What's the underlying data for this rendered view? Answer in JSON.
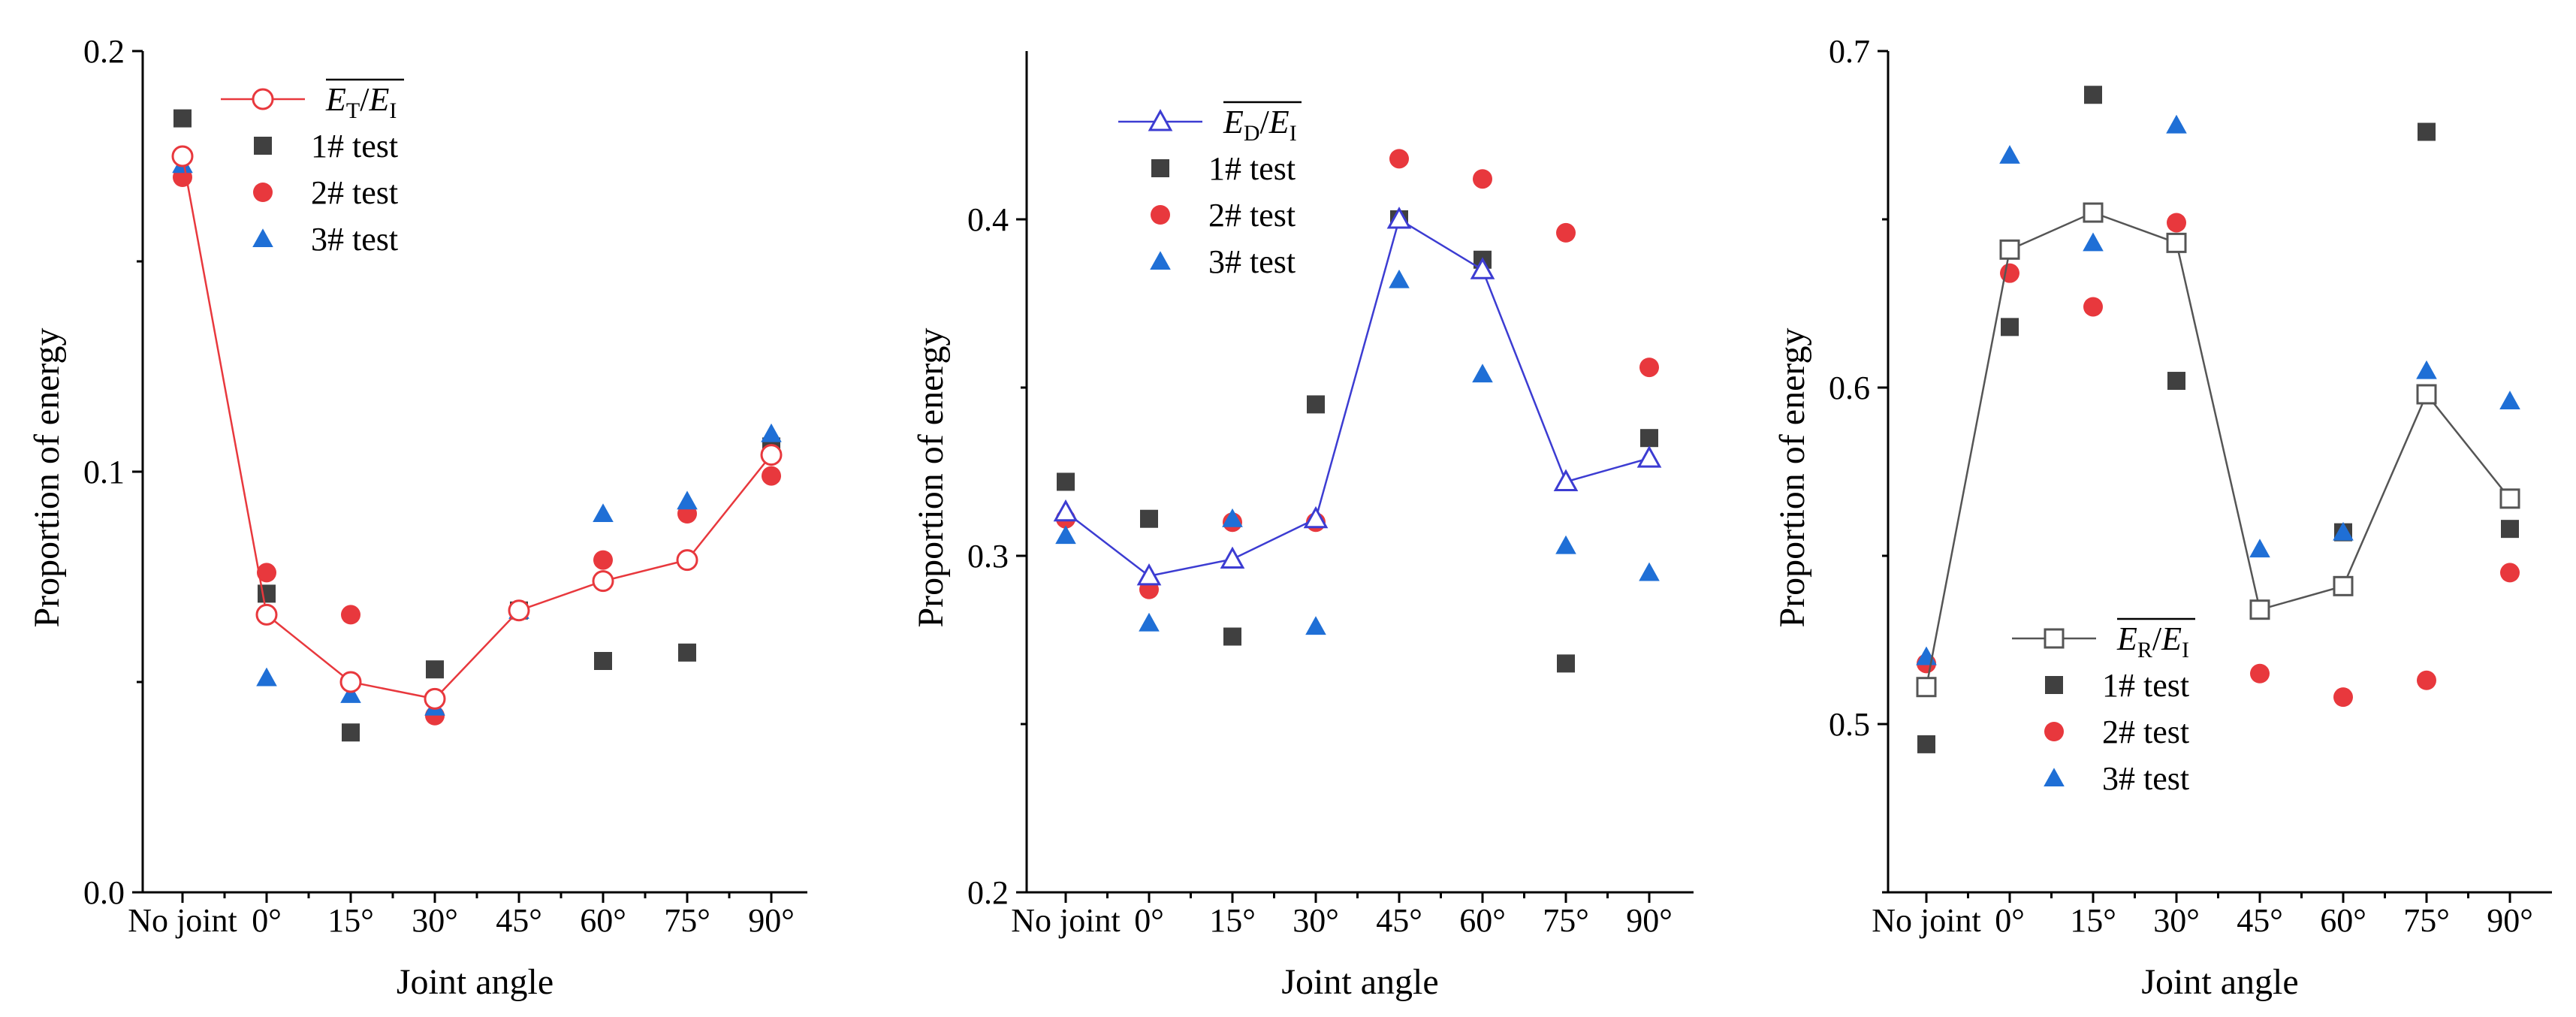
{
  "chart_data": [
    {
      "type": "scatter",
      "title": "",
      "xlabel": "Joint  angle",
      "ylabel": "Proportion of energy",
      "categories": [
        "No joint",
        "0°",
        "15°",
        "30°",
        "45°",
        "60°",
        "75°",
        "90°"
      ],
      "ylim": [
        0.0,
        0.2
      ],
      "yticks": [
        0.0,
        0.1,
        0.2
      ],
      "yticks_labels": [
        "0.0",
        "0.1",
        "0.2"
      ],
      "minor_yticks": [
        0.05,
        0.15
      ],
      "legend_position": "top-left",
      "series": [
        {
          "name": "E_T/E_I",
          "legend_main": "E",
          "legend_sub": "T",
          "legend_slash": "/",
          "legend_main2": "E",
          "legend_sub2": "I",
          "kind": "mean-line",
          "marker": "circle-open",
          "color": "#e8383d",
          "values": [
            0.175,
            0.066,
            0.05,
            0.046,
            0.067,
            0.074,
            0.079,
            0.104
          ]
        },
        {
          "name": "1# test",
          "kind": "points",
          "marker": "square",
          "color": "#404040",
          "values": [
            0.184,
            0.071,
            0.038,
            0.053,
            0.067,
            0.055,
            0.057,
            0.106
          ]
        },
        {
          "name": "2# test",
          "kind": "points",
          "marker": "circle",
          "color": "#e8383d",
          "values": [
            0.17,
            0.076,
            0.066,
            0.042,
            0.067,
            0.079,
            0.09,
            0.099
          ]
        },
        {
          "name": "3# test",
          "kind": "points",
          "marker": "triangle",
          "color": "#1f6fd6",
          "values": [
            0.173,
            0.051,
            0.047,
            0.044,
            0.067,
            0.09,
            0.093,
            0.109
          ]
        }
      ]
    },
    {
      "type": "scatter",
      "title": "",
      "xlabel": "Joint angle",
      "ylabel": "Proportion of energy",
      "categories": [
        "No joint",
        "0°",
        "15°",
        "30°",
        "45°",
        "60°",
        "75°",
        "90°"
      ],
      "ylim": [
        0.2,
        0.45
      ],
      "yticks": [
        0.2,
        0.3,
        0.4
      ],
      "yticks_labels": [
        "0.2",
        "0.3",
        "0.4"
      ],
      "minor_yticks": [
        0.25,
        0.35
      ],
      "legend_position": "top-left",
      "series": [
        {
          "name": "E_D/E_I",
          "legend_main": "E",
          "legend_sub": "D",
          "legend_slash": "/",
          "legend_main2": "E",
          "legend_sub2": "I",
          "kind": "mean-line",
          "marker": "triangle-open",
          "color": "#3c3cd2",
          "values": [
            0.313,
            0.294,
            0.299,
            0.311,
            0.4,
            0.385,
            0.322,
            0.329
          ]
        },
        {
          "name": "1# test",
          "kind": "points",
          "marker": "square",
          "color": "#404040",
          "values": [
            0.322,
            0.311,
            0.276,
            0.345,
            0.4,
            0.388,
            0.268,
            0.335
          ]
        },
        {
          "name": "2# test",
          "kind": "points",
          "marker": "circle",
          "color": "#e8383d",
          "values": [
            0.311,
            0.29,
            0.31,
            0.31,
            0.418,
            0.412,
            0.396,
            0.356
          ]
        },
        {
          "name": "3# test",
          "kind": "points",
          "marker": "triangle",
          "color": "#1f6fd6",
          "values": [
            0.306,
            0.28,
            0.311,
            0.279,
            0.382,
            0.354,
            0.303,
            0.295
          ]
        }
      ]
    },
    {
      "type": "scatter",
      "title": "",
      "xlabel": "Joint angle",
      "ylabel": "Proportion of energy",
      "categories": [
        "No joint",
        "0°",
        "15°",
        "30°",
        "45°",
        "60°",
        "75°",
        "90°"
      ],
      "ylim": [
        0.45,
        0.7
      ],
      "yticks": [
        0.5,
        0.6,
        0.7
      ],
      "yticks_labels": [
        "0.5",
        "0.6",
        "0.7"
      ],
      "minor_yticks": [
        0.45,
        0.55,
        0.65
      ],
      "legend_position": "bottom-center",
      "series": [
        {
          "name": "E_R/E_I",
          "legend_main": "E",
          "legend_sub": "R",
          "legend_slash": "/",
          "legend_main2": "E",
          "legend_sub2": "I",
          "kind": "mean-line",
          "marker": "square-open",
          "color": "#555555",
          "values": [
            0.511,
            0.641,
            0.652,
            0.643,
            0.534,
            0.541,
            0.598,
            0.567
          ]
        },
        {
          "name": "1# test",
          "kind": "points",
          "marker": "square",
          "color": "#404040",
          "values": [
            0.494,
            0.618,
            0.687,
            0.602,
            0.534,
            0.557,
            0.676,
            0.558
          ]
        },
        {
          "name": "2# test",
          "kind": "points",
          "marker": "circle",
          "color": "#e8383d",
          "values": [
            0.518,
            0.634,
            0.624,
            0.649,
            0.515,
            0.508,
            0.513,
            0.545
          ]
        },
        {
          "name": "3# test",
          "kind": "points",
          "marker": "triangle",
          "color": "#1f6fd6",
          "values": [
            0.52,
            0.669,
            0.643,
            0.678,
            0.552,
            0.557,
            0.605,
            0.596
          ]
        }
      ]
    }
  ]
}
